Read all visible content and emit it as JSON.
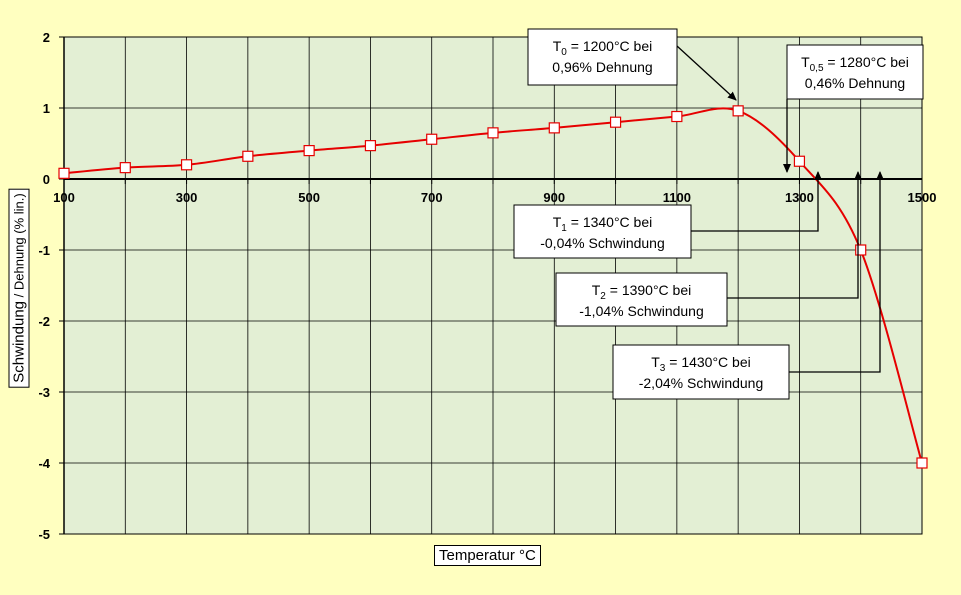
{
  "chart_data": {
    "type": "line",
    "xlabel": "Temperatur °C",
    "ylabel_main": "Schwindung",
    "ylabel_rest": " / Dehnung  (% lin.)",
    "xlim": [
      100,
      1500
    ],
    "ylim": [
      -5,
      2
    ],
    "x_ticks": [
      100,
      300,
      500,
      700,
      900,
      1100,
      1300,
      1500
    ],
    "y_ticks": [
      2,
      1,
      0,
      -1,
      -2,
      -3,
      -4,
      -5
    ],
    "x_grid_step": 100,
    "grid": true,
    "series": [
      {
        "color": "#e60000",
        "x": [
          100,
          200,
          300,
          400,
          500,
          600,
          700,
          800,
          900,
          1000,
          1100,
          1200,
          1300,
          1400,
          1500
        ],
        "y": [
          0.08,
          0.16,
          0.2,
          0.32,
          0.4,
          0.47,
          0.56,
          0.65,
          0.72,
          0.8,
          0.88,
          0.96,
          0.25,
          -1.0,
          -4.0
        ]
      }
    ],
    "annotations": [
      {
        "id": "t0",
        "line1_pre": "T",
        "line1_sub": "0",
        "line1_post": " = 1200°C bei",
        "line2": "0,96%  Dehnung",
        "target": [
          1200,
          0.96
        ]
      },
      {
        "id": "t05",
        "line1_pre": "T",
        "line1_sub": "0,5",
        "line1_post": " = 1280°C bei",
        "line2": "0,46% Dehnung",
        "target": [
          1280,
          0
        ]
      },
      {
        "id": "t1",
        "line1_pre": "T",
        "line1_sub": "1",
        "line1_post": " = 1340°C bei",
        "line2": "-0,04% Schwindung",
        "target": [
          1340,
          0
        ]
      },
      {
        "id": "t2",
        "line1_pre": "T",
        "line1_sub": "2",
        "line1_post": " = 1390°C bei",
        "line2": "-1,04% Schwindung",
        "target": [
          1390,
          0
        ]
      },
      {
        "id": "t3",
        "line1_pre": "T",
        "line1_sub": "3",
        "line1_post": " = 1430°C bei",
        "line2": "-2,04% Schwindung",
        "target": [
          1430,
          0
        ]
      }
    ],
    "colors": {
      "plot_bg": "#e3efd4",
      "page_bg": "#ffffc0",
      "line": "#e60000",
      "marker_fill": "#ffffff"
    }
  }
}
